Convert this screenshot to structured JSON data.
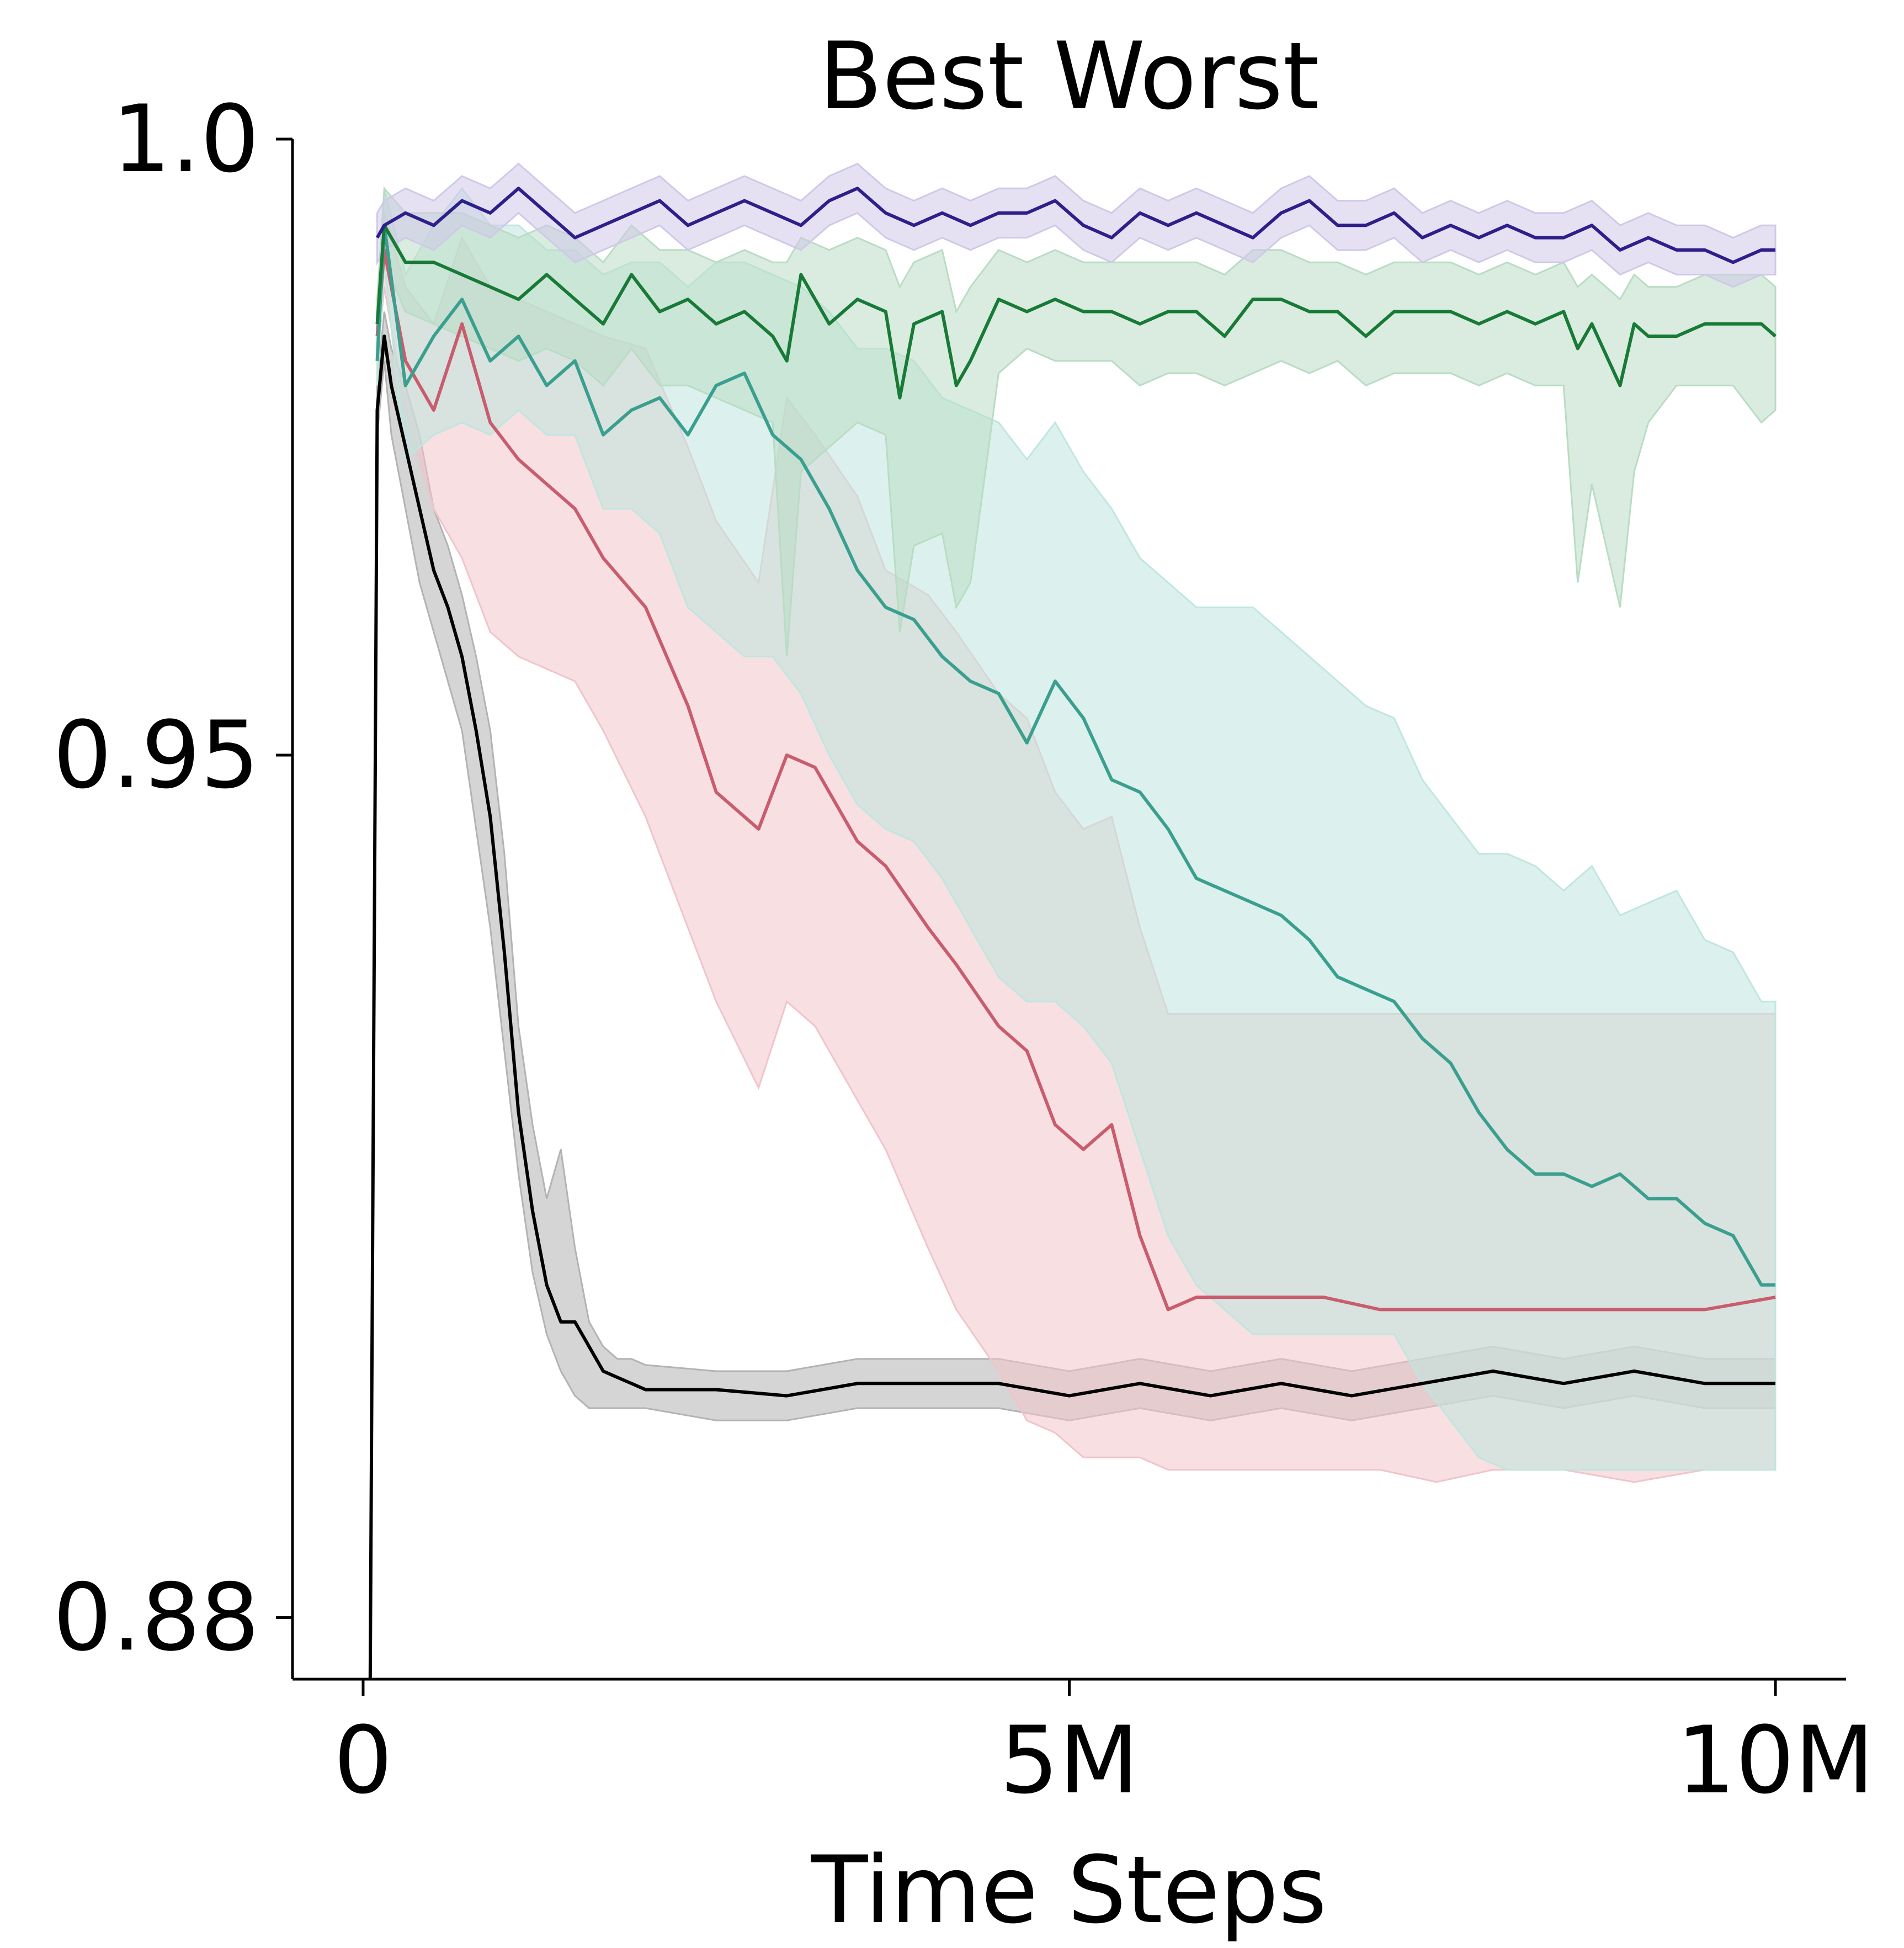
{
  "chart_data": {
    "type": "line",
    "title": "Best Worst",
    "xlabel": "Time Steps",
    "ylabel": "",
    "xlim": [
      -0.5,
      10.5
    ],
    "ylim": [
      0.875,
      1.0
    ],
    "x_scale": "linear",
    "y_scale": "linear",
    "x_ticks": [
      {
        "value": 0,
        "label": "0"
      },
      {
        "value": 5,
        "label": "5M"
      },
      {
        "value": 10,
        "label": "10M"
      }
    ],
    "y_ticks": [
      {
        "value": 0.88,
        "label": "0.88"
      },
      {
        "value": 0.95,
        "label": "0.95"
      },
      {
        "value": 1.0,
        "label": "1.0"
      }
    ],
    "grid": false,
    "legend": "none",
    "series": [
      {
        "color": "#b3b3b3",
        "line_color": "#000000",
        "x": [
          0.05,
          0.1,
          0.15,
          0.2,
          0.3,
          0.4,
          0.5,
          0.6,
          0.7,
          0.8,
          0.9,
          1.0,
          1.1,
          1.2,
          1.3,
          1.4,
          1.5,
          1.6,
          1.7,
          1.8,
          1.9,
          2.0,
          2.5,
          3.0,
          3.5,
          4.0,
          4.5,
          5.0,
          5.5,
          6.0,
          6.5,
          7.0,
          7.5,
          8.0,
          8.5,
          9.0,
          9.5,
          10.0
        ],
        "y": [
          0.875,
          0.978,
          0.984,
          0.98,
          0.975,
          0.97,
          0.965,
          0.962,
          0.958,
          0.952,
          0.945,
          0.934,
          0.921,
          0.913,
          0.907,
          0.904,
          0.904,
          0.902,
          0.9,
          0.8995,
          0.899,
          0.8985,
          0.8985,
          0.898,
          0.899,
          0.899,
          0.899,
          0.898,
          0.899,
          0.898,
          0.899,
          0.898,
          0.899,
          0.9,
          0.899,
          0.9,
          0.899,
          0.899
        ],
        "low": [
          0.875,
          0.976,
          0.982,
          0.976,
          0.97,
          0.964,
          0.96,
          0.956,
          0.952,
          0.944,
          0.936,
          0.926,
          0.916,
          0.908,
          0.903,
          0.9,
          0.898,
          0.897,
          0.897,
          0.897,
          0.897,
          0.897,
          0.896,
          0.896,
          0.897,
          0.897,
          0.897,
          0.896,
          0.897,
          0.896,
          0.897,
          0.896,
          0.897,
          0.898,
          0.897,
          0.898,
          0.897,
          0.897
        ],
        "high": [
          0.875,
          0.98,
          0.986,
          0.983,
          0.98,
          0.976,
          0.97,
          0.967,
          0.963,
          0.958,
          0.952,
          0.942,
          0.928,
          0.92,
          0.914,
          0.918,
          0.91,
          0.904,
          0.902,
          0.901,
          0.901,
          0.9005,
          0.9,
          0.9,
          0.901,
          0.901,
          0.901,
          0.9,
          0.901,
          0.9,
          0.901,
          0.9,
          0.901,
          0.902,
          0.901,
          0.902,
          0.901,
          0.901
        ]
      },
      {
        "color": "#f0c4cb",
        "line_color": "#c85d6e",
        "x": [
          0.1,
          0.15,
          0.3,
          0.5,
          0.7,
          0.9,
          1.1,
          1.3,
          1.5,
          1.7,
          2.0,
          2.3,
          2.5,
          2.8,
          3.0,
          3.2,
          3.5,
          3.7,
          4.0,
          4.2,
          4.5,
          4.7,
          4.9,
          5.1,
          5.3,
          5.5,
          5.7,
          5.9,
          6.2,
          6.5,
          6.8,
          7.2,
          7.6,
          8.0,
          8.5,
          9.0,
          9.5,
          10.0
        ],
        "y": [
          0.984,
          0.991,
          0.982,
          0.978,
          0.985,
          0.977,
          0.974,
          0.972,
          0.97,
          0.966,
          0.962,
          0.954,
          0.947,
          0.944,
          0.95,
          0.949,
          0.943,
          0.941,
          0.936,
          0.933,
          0.928,
          0.926,
          0.92,
          0.918,
          0.92,
          0.911,
          0.905,
          0.906,
          0.906,
          0.906,
          0.906,
          0.905,
          0.905,
          0.905,
          0.905,
          0.905,
          0.905,
          0.906
        ],
        "low": [
          0.982,
          0.988,
          0.978,
          0.97,
          0.966,
          0.96,
          0.958,
          0.957,
          0.956,
          0.952,
          0.945,
          0.936,
          0.93,
          0.923,
          0.93,
          0.928,
          0.922,
          0.918,
          0.91,
          0.905,
          0.9,
          0.896,
          0.895,
          0.893,
          0.893,
          0.893,
          0.892,
          0.892,
          0.892,
          0.892,
          0.892,
          0.892,
          0.891,
          0.892,
          0.892,
          0.891,
          0.892,
          0.892
        ],
        "high": [
          0.986,
          0.994,
          0.988,
          0.985,
          0.992,
          0.988,
          0.987,
          0.986,
          0.985,
          0.984,
          0.983,
          0.975,
          0.969,
          0.964,
          0.979,
          0.976,
          0.971,
          0.965,
          0.963,
          0.96,
          0.955,
          0.953,
          0.947,
          0.944,
          0.945,
          0.936,
          0.929,
          0.929,
          0.929,
          0.929,
          0.929,
          0.929,
          0.929,
          0.929,
          0.929,
          0.929,
          0.929,
          0.929
        ]
      },
      {
        "color": "#bfe6df",
        "line_color": "#3a9f8e",
        "x": [
          0.1,
          0.15,
          0.3,
          0.5,
          0.7,
          0.9,
          1.1,
          1.3,
          1.5,
          1.7,
          1.9,
          2.1,
          2.3,
          2.5,
          2.7,
          2.9,
          3.1,
          3.3,
          3.5,
          3.7,
          3.9,
          4.1,
          4.3,
          4.5,
          4.7,
          4.9,
          5.1,
          5.3,
          5.5,
          5.7,
          5.9,
          6.1,
          6.3,
          6.5,
          6.7,
          6.9,
          7.1,
          7.3,
          7.5,
          7.7,
          7.9,
          8.1,
          8.3,
          8.5,
          8.7,
          8.9,
          9.1,
          9.3,
          9.5,
          9.7,
          9.9,
          10.0
        ],
        "y": [
          0.982,
          0.993,
          0.98,
          0.984,
          0.987,
          0.982,
          0.984,
          0.98,
          0.982,
          0.976,
          0.978,
          0.979,
          0.976,
          0.98,
          0.981,
          0.976,
          0.974,
          0.97,
          0.965,
          0.962,
          0.961,
          0.958,
          0.956,
          0.955,
          0.951,
          0.956,
          0.953,
          0.948,
          0.947,
          0.944,
          0.94,
          0.939,
          0.938,
          0.937,
          0.935,
          0.932,
          0.931,
          0.93,
          0.927,
          0.925,
          0.921,
          0.918,
          0.916,
          0.916,
          0.915,
          0.916,
          0.914,
          0.914,
          0.912,
          0.911,
          0.907,
          0.907
        ],
        "low": [
          0.98,
          0.99,
          0.974,
          0.976,
          0.977,
          0.976,
          0.978,
          0.976,
          0.976,
          0.97,
          0.97,
          0.968,
          0.962,
          0.96,
          0.958,
          0.958,
          0.955,
          0.95,
          0.946,
          0.944,
          0.943,
          0.94,
          0.936,
          0.932,
          0.93,
          0.93,
          0.928,
          0.925,
          0.918,
          0.911,
          0.907,
          0.905,
          0.903,
          0.903,
          0.903,
          0.903,
          0.903,
          0.903,
          0.899,
          0.896,
          0.893,
          0.892,
          0.892,
          0.892,
          0.892,
          0.892,
          0.892,
          0.892,
          0.892,
          0.892,
          0.892,
          0.892
        ],
        "high": [
          0.984,
          0.996,
          0.989,
          0.993,
          0.996,
          0.993,
          0.993,
          0.991,
          0.991,
          0.989,
          0.99,
          0.99,
          0.988,
          0.99,
          0.99,
          0.989,
          0.988,
          0.986,
          0.983,
          0.983,
          0.982,
          0.979,
          0.978,
          0.977,
          0.974,
          0.977,
          0.973,
          0.97,
          0.966,
          0.964,
          0.962,
          0.962,
          0.962,
          0.96,
          0.958,
          0.956,
          0.954,
          0.953,
          0.948,
          0.945,
          0.942,
          0.942,
          0.941,
          0.939,
          0.941,
          0.937,
          0.938,
          0.939,
          0.935,
          0.934,
          0.93,
          0.93
        ]
      },
      {
        "color": "#b9dcc4",
        "line_color": "#187a36",
        "x": [
          0.1,
          0.15,
          0.3,
          0.5,
          0.7,
          0.9,
          1.1,
          1.3,
          1.5,
          1.7,
          1.9,
          2.1,
          2.3,
          2.5,
          2.7,
          2.9,
          3.0,
          3.1,
          3.3,
          3.5,
          3.7,
          3.8,
          3.9,
          4.1,
          4.2,
          4.3,
          4.5,
          4.7,
          4.9,
          5.1,
          5.3,
          5.5,
          5.7,
          5.9,
          6.1,
          6.3,
          6.5,
          6.7,
          6.9,
          7.1,
          7.3,
          7.5,
          7.7,
          7.9,
          8.1,
          8.3,
          8.5,
          8.6,
          8.7,
          8.9,
          9.0,
          9.1,
          9.3,
          9.5,
          9.7,
          9.9,
          10.0
        ],
        "y": [
          0.985,
          0.993,
          0.99,
          0.99,
          0.989,
          0.988,
          0.987,
          0.989,
          0.987,
          0.985,
          0.989,
          0.986,
          0.987,
          0.985,
          0.986,
          0.984,
          0.982,
          0.989,
          0.985,
          0.987,
          0.986,
          0.979,
          0.985,
          0.986,
          0.98,
          0.982,
          0.987,
          0.986,
          0.987,
          0.986,
          0.986,
          0.985,
          0.986,
          0.986,
          0.984,
          0.987,
          0.987,
          0.986,
          0.986,
          0.984,
          0.986,
          0.986,
          0.986,
          0.985,
          0.986,
          0.985,
          0.986,
          0.983,
          0.985,
          0.98,
          0.985,
          0.984,
          0.984,
          0.985,
          0.985,
          0.985,
          0.984
        ],
        "low": [
          0.983,
          0.99,
          0.986,
          0.985,
          0.984,
          0.983,
          0.982,
          0.983,
          0.982,
          0.98,
          0.983,
          0.98,
          0.98,
          0.979,
          0.978,
          0.977,
          0.958,
          0.973,
          0.975,
          0.977,
          0.976,
          0.96,
          0.967,
          0.968,
          0.962,
          0.964,
          0.981,
          0.983,
          0.982,
          0.982,
          0.982,
          0.98,
          0.981,
          0.981,
          0.98,
          0.981,
          0.982,
          0.981,
          0.982,
          0.98,
          0.981,
          0.981,
          0.981,
          0.98,
          0.981,
          0.98,
          0.98,
          0.964,
          0.972,
          0.962,
          0.973,
          0.977,
          0.98,
          0.98,
          0.98,
          0.977,
          0.978
        ],
        "high": [
          0.987,
          0.996,
          0.994,
          0.994,
          0.994,
          0.993,
          0.992,
          0.993,
          0.992,
          0.99,
          0.993,
          0.991,
          0.991,
          0.99,
          0.991,
          0.99,
          0.99,
          0.992,
          0.991,
          0.992,
          0.991,
          0.988,
          0.99,
          0.991,
          0.986,
          0.988,
          0.991,
          0.99,
          0.991,
          0.99,
          0.99,
          0.99,
          0.99,
          0.99,
          0.989,
          0.991,
          0.991,
          0.99,
          0.99,
          0.989,
          0.99,
          0.99,
          0.99,
          0.989,
          0.99,
          0.989,
          0.99,
          0.988,
          0.989,
          0.987,
          0.989,
          0.988,
          0.988,
          0.989,
          0.989,
          0.989,
          0.988
        ]
      },
      {
        "color": "#cfc9e8",
        "line_color": "#2e1f8a",
        "x": [
          0.1,
          0.15,
          0.3,
          0.5,
          0.7,
          0.9,
          1.1,
          1.3,
          1.5,
          1.7,
          1.9,
          2.1,
          2.3,
          2.5,
          2.7,
          2.9,
          3.1,
          3.3,
          3.5,
          3.7,
          3.9,
          4.1,
          4.3,
          4.5,
          4.7,
          4.9,
          5.1,
          5.3,
          5.5,
          5.7,
          5.9,
          6.1,
          6.3,
          6.5,
          6.7,
          6.9,
          7.1,
          7.3,
          7.5,
          7.7,
          7.9,
          8.1,
          8.3,
          8.5,
          8.7,
          8.9,
          9.1,
          9.3,
          9.5,
          9.7,
          9.9,
          10.0
        ],
        "y": [
          0.992,
          0.993,
          0.994,
          0.993,
          0.995,
          0.994,
          0.996,
          0.994,
          0.992,
          0.993,
          0.994,
          0.995,
          0.993,
          0.994,
          0.995,
          0.994,
          0.993,
          0.995,
          0.996,
          0.994,
          0.993,
          0.994,
          0.993,
          0.994,
          0.994,
          0.995,
          0.993,
          0.992,
          0.994,
          0.993,
          0.994,
          0.993,
          0.992,
          0.994,
          0.995,
          0.993,
          0.993,
          0.994,
          0.992,
          0.993,
          0.992,
          0.993,
          0.992,
          0.992,
          0.993,
          0.991,
          0.992,
          0.991,
          0.991,
          0.99,
          0.991,
          0.991
        ],
        "low": [
          0.99,
          0.991,
          0.992,
          0.991,
          0.993,
          0.992,
          0.994,
          0.992,
          0.99,
          0.991,
          0.992,
          0.993,
          0.991,
          0.992,
          0.993,
          0.992,
          0.991,
          0.993,
          0.994,
          0.992,
          0.991,
          0.992,
          0.991,
          0.992,
          0.992,
          0.993,
          0.991,
          0.99,
          0.992,
          0.991,
          0.992,
          0.991,
          0.99,
          0.992,
          0.993,
          0.991,
          0.991,
          0.992,
          0.99,
          0.991,
          0.99,
          0.991,
          0.99,
          0.99,
          0.991,
          0.989,
          0.99,
          0.989,
          0.989,
          0.988,
          0.989,
          0.989
        ],
        "high": [
          0.994,
          0.995,
          0.996,
          0.995,
          0.997,
          0.996,
          0.998,
          0.996,
          0.994,
          0.995,
          0.996,
          0.997,
          0.995,
          0.996,
          0.997,
          0.996,
          0.995,
          0.997,
          0.998,
          0.996,
          0.995,
          0.996,
          0.995,
          0.996,
          0.996,
          0.997,
          0.995,
          0.994,
          0.996,
          0.995,
          0.996,
          0.995,
          0.994,
          0.996,
          0.997,
          0.995,
          0.995,
          0.996,
          0.994,
          0.995,
          0.994,
          0.995,
          0.994,
          0.994,
          0.995,
          0.993,
          0.994,
          0.993,
          0.993,
          0.992,
          0.993,
          0.993
        ]
      }
    ]
  }
}
